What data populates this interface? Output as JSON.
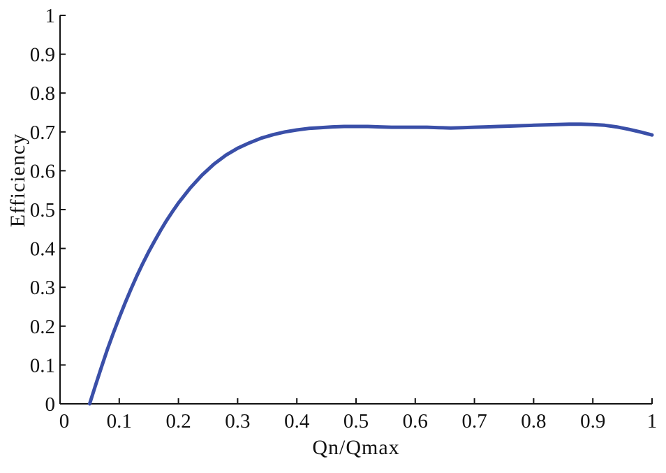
{
  "chart_data": {
    "type": "line",
    "title": "",
    "xlabel": "Qn/Qmax",
    "ylabel": "Efficiency",
    "xlim": [
      0,
      1
    ],
    "ylim": [
      0,
      1
    ],
    "x_ticks": [
      "0",
      "0.1",
      "0.2",
      "0.3",
      "0.4",
      "0.5",
      "0.6",
      "0.7",
      "0.8",
      "0.9",
      "1"
    ],
    "y_ticks": [
      "0",
      "0.1",
      "0.2",
      "0.3",
      "0.4",
      "0.5",
      "0.6",
      "0.7",
      "0.8",
      "0.9",
      "1"
    ],
    "grid": false,
    "legend": "none",
    "series": [
      {
        "color": "#3a4fa8",
        "x": [
          0.05,
          0.06,
          0.07,
          0.08,
          0.09,
          0.1,
          0.11,
          0.12,
          0.13,
          0.14,
          0.15,
          0.16,
          0.17,
          0.18,
          0.19,
          0.2,
          0.22,
          0.24,
          0.26,
          0.28,
          0.3,
          0.32,
          0.34,
          0.36,
          0.38,
          0.4,
          0.42,
          0.44,
          0.46,
          0.48,
          0.5,
          0.52,
          0.54,
          0.56,
          0.58,
          0.6,
          0.62,
          0.64,
          0.66,
          0.68,
          0.7,
          0.72,
          0.74,
          0.76,
          0.78,
          0.8,
          0.82,
          0.84,
          0.86,
          0.88,
          0.9,
          0.92,
          0.94,
          0.96,
          0.98,
          1.0
        ],
        "y": [
          0.0,
          0.048,
          0.095,
          0.14,
          0.182,
          0.222,
          0.26,
          0.296,
          0.33,
          0.362,
          0.392,
          0.42,
          0.447,
          0.472,
          0.495,
          0.517,
          0.556,
          0.589,
          0.617,
          0.64,
          0.658,
          0.672,
          0.684,
          0.693,
          0.7,
          0.705,
          0.709,
          0.711,
          0.713,
          0.714,
          0.714,
          0.714,
          0.713,
          0.712,
          0.712,
          0.712,
          0.712,
          0.711,
          0.71,
          0.711,
          0.712,
          0.713,
          0.714,
          0.715,
          0.716,
          0.717,
          0.718,
          0.719,
          0.72,
          0.72,
          0.719,
          0.717,
          0.713,
          0.707,
          0.7,
          0.692
        ]
      }
    ]
  }
}
